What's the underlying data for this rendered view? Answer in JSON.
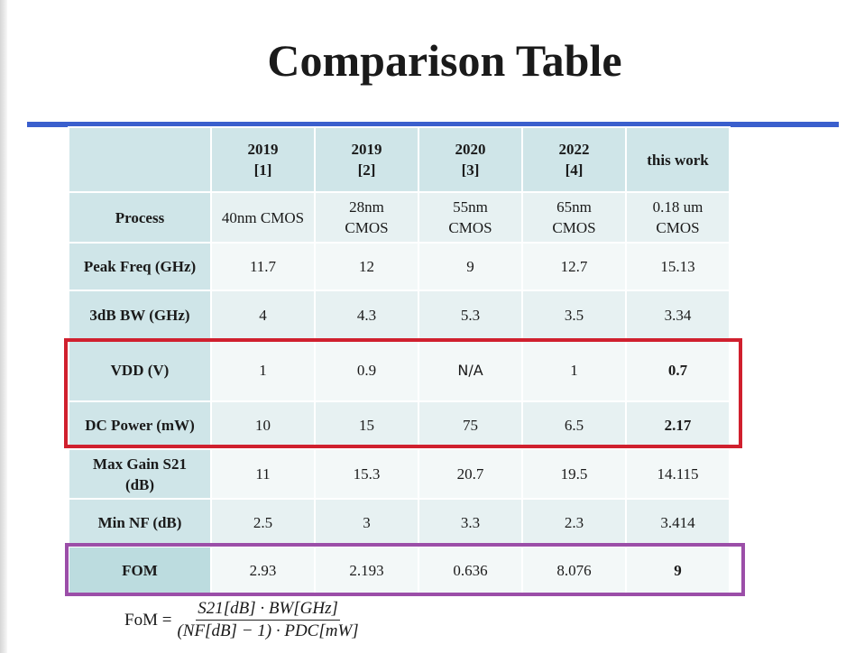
{
  "title": "Comparison Table",
  "table": {
    "header": [
      null,
      "2019\n[1]",
      "2019\n[2]",
      "2020\n[3]",
      "2022\n[4]",
      "this work"
    ],
    "rows": [
      [
        "Process",
        "40nm CMOS",
        "28nm\nCMOS",
        "55nm\nCMOS",
        "65nm\nCMOS",
        "0.18 um\nCMOS"
      ],
      [
        "Peak Freq (GHz)",
        "11.7",
        "12",
        "9",
        "12.7",
        "15.13"
      ],
      [
        "3dB BW (GHz)",
        "4",
        "4.3",
        "5.3",
        "3.5",
        "3.34"
      ],
      [
        "VDD (V)",
        "1",
        "0.9",
        "N/A",
        "1",
        "0.7"
      ],
      [
        "DC Power (mW)",
        "10",
        "15",
        "75",
        "6.5",
        "2.17"
      ],
      [
        "Max Gain S21\n(dB)",
        "11",
        "15.3",
        "20.7",
        "19.5",
        "14.115"
      ],
      [
        "Min NF (dB)",
        "2.5",
        "3",
        "3.3",
        "2.3",
        "3.414"
      ],
      [
        "FOM",
        "2.93",
        "2.193",
        "0.636",
        "8.076",
        "9"
      ]
    ]
  },
  "formula": {
    "lhs": "FoM =",
    "numerator": "S21[dB] · BW[GHz]",
    "denominator": "(NF[dB] − 1) · PDC[mW]"
  }
}
